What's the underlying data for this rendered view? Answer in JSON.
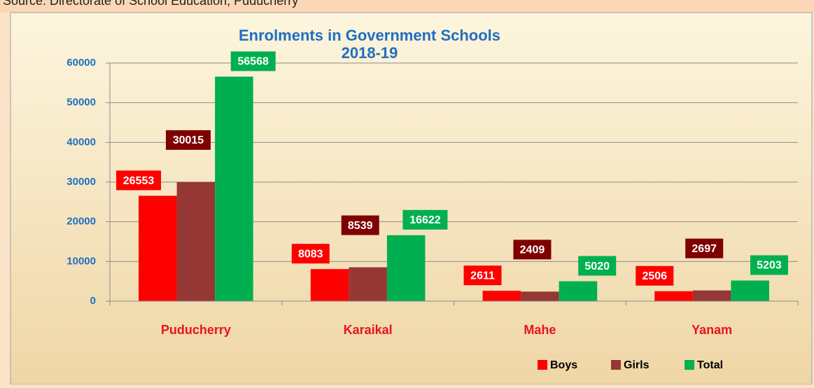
{
  "source": "Source: Directorate of School Education, Puducherry",
  "chart_data": {
    "type": "bar",
    "title": "Enrolments in Government Schools",
    "subtitle": "2018-19",
    "categories": [
      "Puducherry",
      "Karaikal",
      "Mahe",
      "Yanam"
    ],
    "series": [
      {
        "name": "Boys",
        "color": "#ff0000",
        "values": [
          26553,
          8083,
          2611,
          2506
        ]
      },
      {
        "name": "Girls",
        "color": "#953735",
        "values": [
          30015,
          8539,
          2409,
          2697
        ]
      },
      {
        "name": "Total",
        "color": "#00b050",
        "values": [
          56568,
          16622,
          5020,
          5203
        ]
      }
    ],
    "ylim": [
      0,
      60000
    ],
    "yticks": [
      0,
      10000,
      20000,
      30000,
      40000,
      50000,
      60000
    ],
    "grid": true,
    "legend": "bottom-right"
  }
}
